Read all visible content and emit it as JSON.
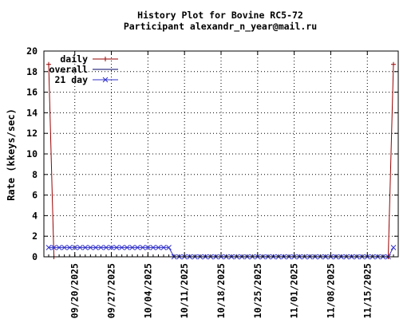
{
  "chart_data": {
    "type": "line",
    "title": "History Plot for Bovine RC5-72",
    "subtitle": "Participant alexandr_n_year@mail.ru",
    "xlabel": "",
    "ylabel": "Rate (kkeys/sec)",
    "ylim": [
      0,
      20
    ],
    "yticks": [
      "0",
      "2",
      "4",
      "6",
      "8",
      "10",
      "12",
      "14",
      "16",
      "18",
      "20"
    ],
    "xlim": [
      "2025-09-15",
      "2025-11-20"
    ],
    "xticks": [
      "09/20/2025",
      "09/27/2025",
      "10/04/2025",
      "10/11/2025",
      "10/18/2025",
      "10/25/2025",
      "11/01/2025",
      "11/08/2025",
      "11/15/2025"
    ],
    "grid": true,
    "legend_position": "top-left",
    "series": [
      {
        "name": "daily",
        "color": "#990000",
        "marker": "plus",
        "points": [
          [
            "2025-09-15",
            18.7
          ],
          [
            "2025-09-16",
            0
          ],
          [
            "2025-11-19",
            0
          ],
          [
            "2025-11-20",
            18.7
          ]
        ]
      },
      {
        "name": "overall",
        "color": "#000066",
        "marker": "none",
        "points": []
      },
      {
        "name": "21 day",
        "color": "#3333cc",
        "marker": "cross",
        "segments": [
          {
            "from": "2025-09-15",
            "to": "2025-10-08",
            "value": 0.9
          },
          {
            "from": "2025-10-09",
            "to": "2025-11-19",
            "value": 0
          },
          {
            "from": "2025-11-20",
            "to": "2025-11-20",
            "value": 0.9
          }
        ]
      }
    ]
  }
}
